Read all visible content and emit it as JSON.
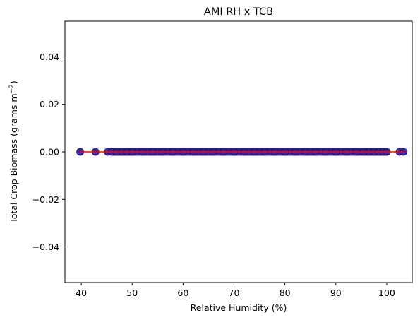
{
  "chart_data": {
    "type": "scatter",
    "title": "AMI RH x TCB",
    "xlabel": "Relative Humidity (%)",
    "ylabel_main": "Total Crop Biomass (grams m",
    "ylabel_sup": "−2",
    "ylabel_end": ")",
    "xlim": [
      36.8,
      105.0
    ],
    "ylim": [
      -0.055,
      0.055
    ],
    "x_ticks": [
      40,
      50,
      60,
      70,
      80,
      90,
      100
    ],
    "x_tick_labels": [
      "40",
      "50",
      "60",
      "70",
      "80",
      "90",
      "100"
    ],
    "y_ticks": [
      -0.04,
      -0.02,
      0.0,
      0.02,
      0.04
    ],
    "y_tick_labels": [
      "−0.04",
      "−0.02",
      "0.00",
      "0.02",
      "0.04"
    ],
    "grid": false,
    "series": [
      {
        "marker_color": "#3b1f99",
        "marker_edge": "#1f1066",
        "points": [
          {
            "x": 39.8,
            "y": 0
          },
          {
            "x": 42.8,
            "y": 0
          },
          {
            "x": 45.2,
            "y": 0
          },
          {
            "x": 46.0,
            "y": 0
          },
          {
            "x": 47.0,
            "y": 0
          },
          {
            "x": 48.0,
            "y": 0
          },
          {
            "x": 49.0,
            "y": 0
          },
          {
            "x": 50.0,
            "y": 0
          },
          {
            "x": 52.0,
            "y": 0
          },
          {
            "x": 54.0,
            "y": 0
          },
          {
            "x": 56.0,
            "y": 0
          },
          {
            "x": 58.0,
            "y": 0
          },
          {
            "x": 60.0,
            "y": 0
          },
          {
            "x": 62.0,
            "y": 0
          },
          {
            "x": 64.0,
            "y": 0
          },
          {
            "x": 66.0,
            "y": 0
          },
          {
            "x": 68.0,
            "y": 0
          },
          {
            "x": 70.0,
            "y": 0
          },
          {
            "x": 72.0,
            "y": 0
          },
          {
            "x": 74.0,
            "y": 0
          },
          {
            "x": 76.0,
            "y": 0
          },
          {
            "x": 78.0,
            "y": 0
          },
          {
            "x": 80.0,
            "y": 0
          },
          {
            "x": 82.0,
            "y": 0
          },
          {
            "x": 84.0,
            "y": 0
          },
          {
            "x": 86.0,
            "y": 0
          },
          {
            "x": 88.0,
            "y": 0
          },
          {
            "x": 90.0,
            "y": 0
          },
          {
            "x": 92.0,
            "y": 0
          },
          {
            "x": 94.0,
            "y": 0
          },
          {
            "x": 95.5,
            "y": 0
          },
          {
            "x": 96.5,
            "y": 0
          },
          {
            "x": 97.5,
            "y": 0
          },
          {
            "x": 98.5,
            "y": 0
          },
          {
            "x": 99.3,
            "y": 0
          },
          {
            "x": 100.0,
            "y": 0
          },
          {
            "x": 102.5,
            "y": 0
          },
          {
            "x": 103.3,
            "y": 0
          }
        ]
      }
    ],
    "fit_line": {
      "x": [
        39.8,
        103.3
      ],
      "y": [
        0,
        0
      ],
      "color": "#ff0000"
    },
    "band_x": [
      45.2,
      100.5
    ]
  }
}
